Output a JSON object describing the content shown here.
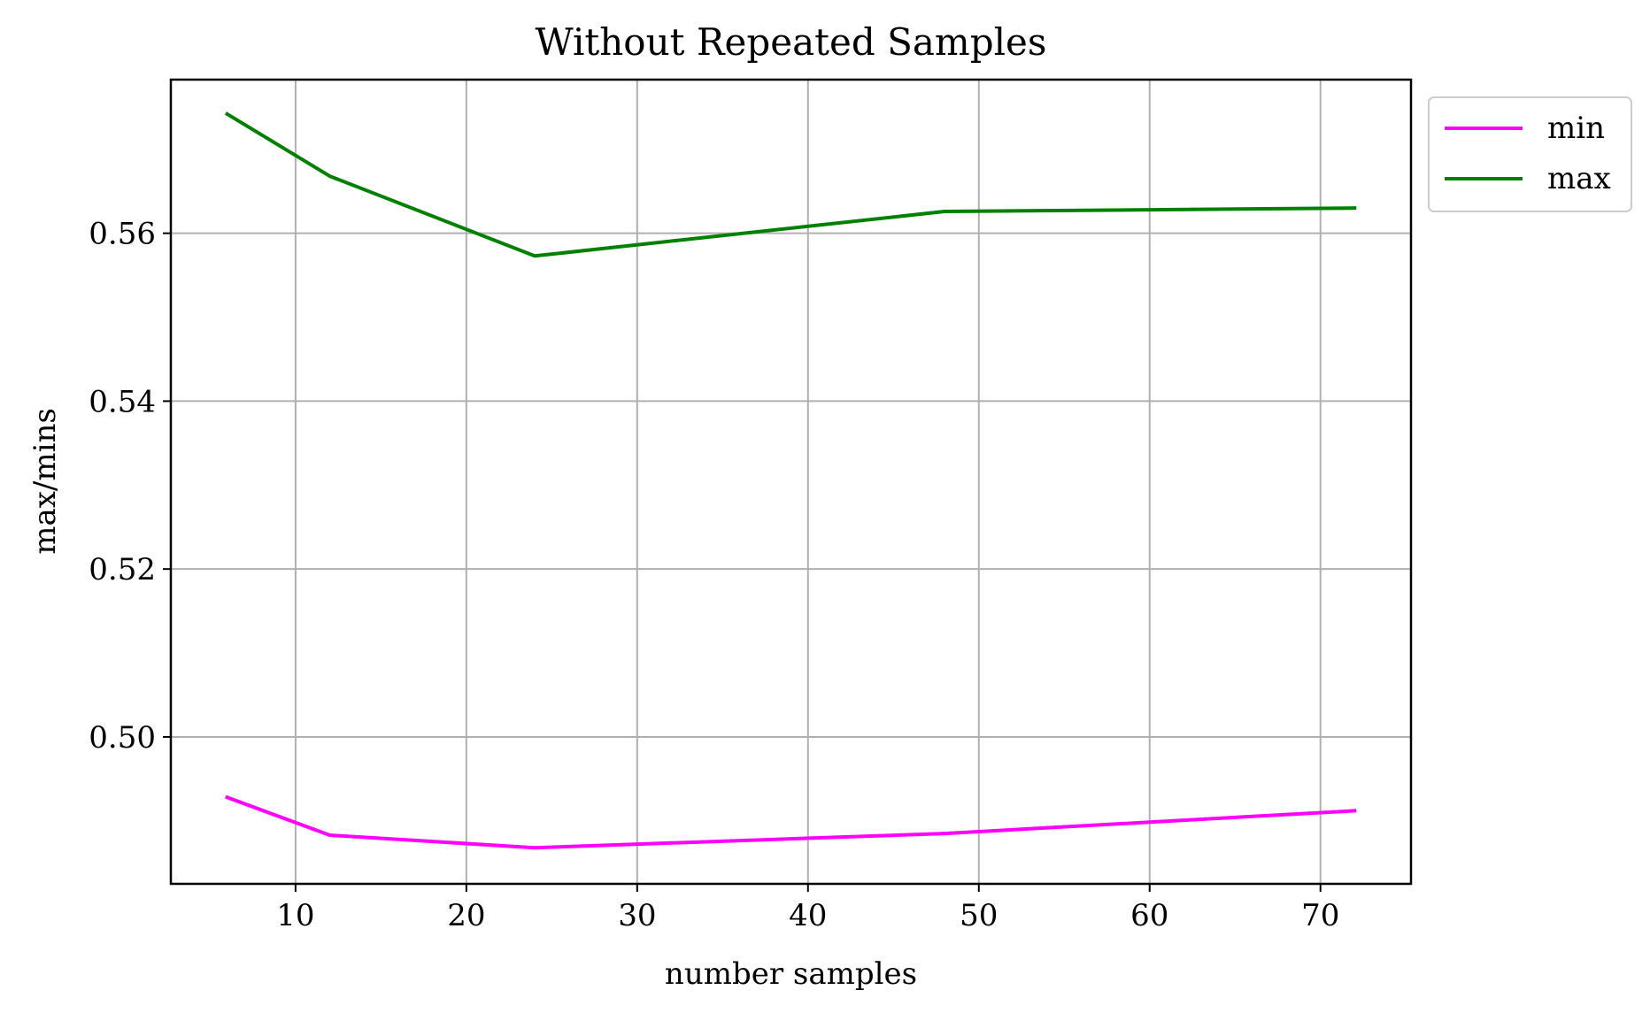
{
  "chart_data": {
    "type": "line",
    "title": "Without Repeated Samples",
    "xlabel": "number samples",
    "ylabel": "max/mins",
    "x": [
      6,
      12,
      24,
      48,
      72
    ],
    "series": [
      {
        "name": "min",
        "color": "#ff00ff",
        "values": [
          0.4928,
          0.4883,
          0.4868,
          0.4885,
          0.4912
        ]
      },
      {
        "name": "max",
        "color": "#008000",
        "values": [
          0.5742,
          0.5668,
          0.5573,
          0.5626,
          0.563
        ]
      }
    ],
    "xlim": [
      2.7,
      75.3
    ],
    "ylim": [
      0.4825,
      0.5783
    ],
    "xticks": [
      10,
      20,
      30,
      40,
      50,
      60,
      70
    ],
    "xtick_labels": [
      "10",
      "20",
      "30",
      "40",
      "50",
      "60",
      "70"
    ],
    "yticks": [
      0.5,
      0.52,
      0.54,
      0.56
    ],
    "ytick_labels": [
      "0.50",
      "0.52",
      "0.54",
      "0.56"
    ],
    "grid": true,
    "legend_position": "outside-top-right"
  }
}
